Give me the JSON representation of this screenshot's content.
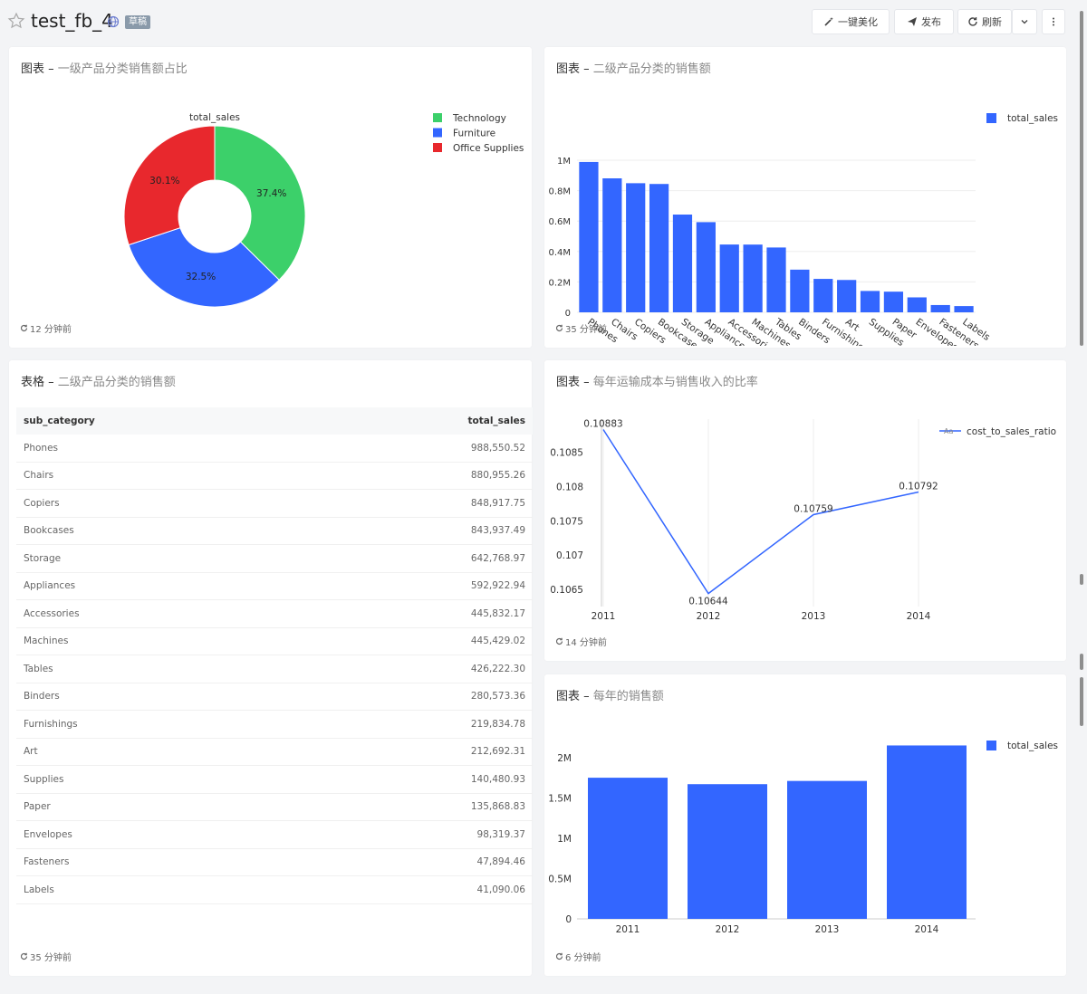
{
  "header": {
    "title": "test_fb_4",
    "badge": "草稿",
    "buttons": {
      "beautify": "一键美化",
      "publish": "发布",
      "refresh": "刷新"
    }
  },
  "cards": {
    "pie": {
      "prefix": "图表",
      "subtitle": "一级产品分类销售额占比",
      "footer": "12 分钟前"
    },
    "bar1": {
      "prefix": "图表",
      "subtitle": "二级产品分类的销售额",
      "footer": "35 分钟前"
    },
    "table": {
      "prefix": "表格",
      "subtitle": "二级产品分类的销售额",
      "footer": "35 分钟前",
      "columns": [
        "sub_category",
        "total_sales"
      ],
      "rows": [
        [
          "Phones",
          "988,550.52"
        ],
        [
          "Chairs",
          "880,955.26"
        ],
        [
          "Copiers",
          "848,917.75"
        ],
        [
          "Bookcases",
          "843,937.49"
        ],
        [
          "Storage",
          "642,768.97"
        ],
        [
          "Appliances",
          "592,922.94"
        ],
        [
          "Accessories",
          "445,832.17"
        ],
        [
          "Machines",
          "445,429.02"
        ],
        [
          "Tables",
          "426,222.30"
        ],
        [
          "Binders",
          "280,573.36"
        ],
        [
          "Furnishings",
          "219,834.78"
        ],
        [
          "Art",
          "212,692.31"
        ],
        [
          "Supplies",
          "140,480.93"
        ],
        [
          "Paper",
          "135,868.83"
        ],
        [
          "Envelopes",
          "98,319.37"
        ],
        [
          "Fasteners",
          "47,894.46"
        ],
        [
          "Labels",
          "41,090.06"
        ]
      ]
    },
    "line": {
      "prefix": "图表",
      "subtitle": "每年运输成本与销售收入的比率",
      "footer": "14 分钟前"
    },
    "bar2": {
      "prefix": "图表",
      "subtitle": "每年的销售额",
      "footer": "6 分钟前"
    }
  },
  "chart_data": [
    {
      "type": "pie",
      "title": "total_sales",
      "categories": [
        "Technology",
        "Furniture",
        "Office Supplies"
      ],
      "values": [
        37.4,
        32.5,
        30.1
      ],
      "labels": [
        "37.4%",
        "32.5%",
        "30.1%"
      ],
      "colors": [
        "#3cd06a",
        "#3366ff",
        "#e8282d"
      ],
      "legend": "top-right"
    },
    {
      "type": "bar",
      "categories": [
        "Phones",
        "Chairs",
        "Copiers",
        "Bookcases",
        "Storage",
        "Appliances",
        "Accessories",
        "Machines",
        "Tables",
        "Binders",
        "Furnishings",
        "Art",
        "Supplies",
        "Paper",
        "Envelopes",
        "Fasteners",
        "Labels"
      ],
      "series": [
        {
          "name": "total_sales",
          "values": [
            988550.52,
            880955.26,
            848917.75,
            843937.49,
            642768.97,
            592922.94,
            445832.17,
            445429.02,
            426222.3,
            280573.36,
            219834.78,
            212692.31,
            140480.93,
            135868.83,
            98319.37,
            47894.46,
            41090.06
          ]
        }
      ],
      "ylim": [
        0,
        1000000
      ],
      "yticks": [
        "0",
        "0.2M",
        "0.4M",
        "0.6M",
        "0.8M",
        "1M"
      ],
      "color": "#3366ff",
      "legend": "top-right"
    },
    {
      "type": "line",
      "x": [
        "2011",
        "2012",
        "2013",
        "2014"
      ],
      "series": [
        {
          "name": "cost_to_sales_ratio",
          "values": [
            0.10883,
            0.10644,
            0.10759,
            0.10792
          ]
        }
      ],
      "labels": [
        "0.10883",
        "0.10644",
        "0.10759",
        "0.10792"
      ],
      "ylim": [
        0.10625,
        0.10885
      ],
      "yticks": [
        "0.1065",
        "0.107",
        "0.1075",
        "0.108",
        "0.1085"
      ],
      "legend_marker": "Aa",
      "color": "#3366ff",
      "legend": "top-right"
    },
    {
      "type": "bar",
      "categories": [
        "2011",
        "2012",
        "2013",
        "2014"
      ],
      "series": [
        {
          "name": "total_sales",
          "values": [
            1750000,
            1670000,
            1710000,
            2150000
          ]
        }
      ],
      "ylim": [
        0,
        2200000
      ],
      "yticks": [
        "0",
        "0.5M",
        "1M",
        "1.5M",
        "2M"
      ],
      "color": "#3366ff",
      "legend": "top-right"
    }
  ]
}
